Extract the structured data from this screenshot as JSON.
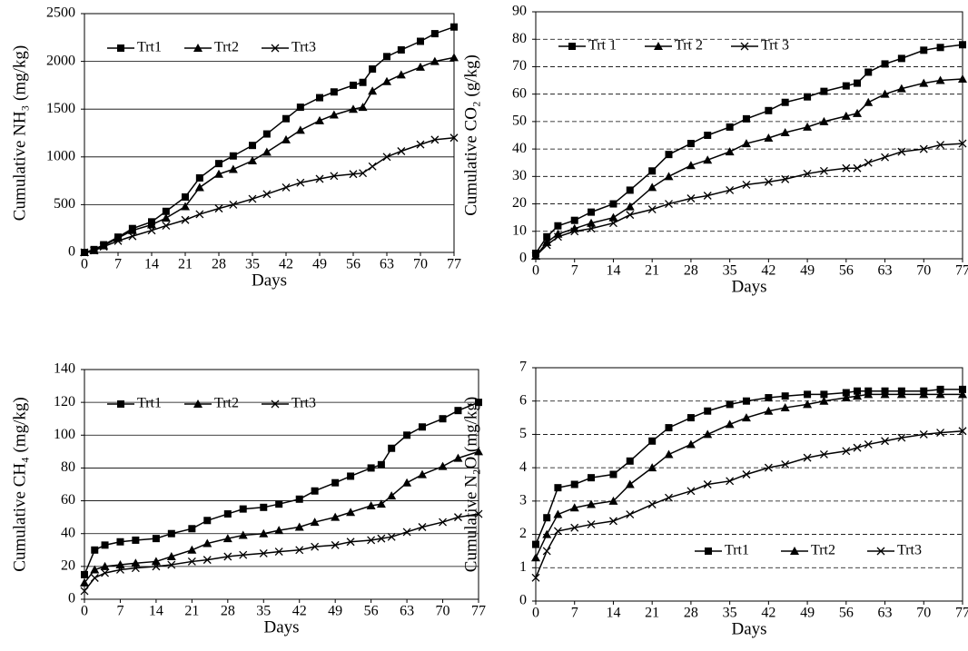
{
  "chart_data": [
    {
      "type": "line",
      "y_label": "Cumulative NH₃ (mg/kg)",
      "x_label": "Days",
      "x": [
        0,
        2,
        4,
        7,
        10,
        14,
        17,
        21,
        24,
        28,
        31,
        35,
        38,
        42,
        45,
        49,
        52,
        56,
        58,
        60,
        63,
        66,
        70,
        73,
        77
      ],
      "xlim": [
        0,
        77
      ],
      "xticks": [
        0,
        7,
        14,
        21,
        28,
        35,
        42,
        49,
        56,
        63,
        70,
        77
      ],
      "ylim": [
        0,
        2500
      ],
      "yticks": [
        0,
        500,
        1000,
        1500,
        2000,
        2500
      ],
      "grid": true,
      "grid_style": "solid",
      "legend": "upper left",
      "series": [
        {
          "name": "Trt1",
          "color": "#000000",
          "marker": "square",
          "values": [
            0,
            30,
            80,
            160,
            250,
            320,
            430,
            580,
            780,
            930,
            1010,
            1120,
            1240,
            1400,
            1520,
            1620,
            1680,
            1750,
            1780,
            1920,
            2050,
            2120,
            2210,
            2290,
            2360
          ]
        },
        {
          "name": "Trt2",
          "color": "#000000",
          "marker": "triangle",
          "values": [
            0,
            20,
            70,
            150,
            230,
            290,
            360,
            480,
            680,
            820,
            870,
            960,
            1050,
            1180,
            1280,
            1380,
            1440,
            1500,
            1520,
            1690,
            1790,
            1860,
            1940,
            2000,
            2040
          ]
        },
        {
          "name": "Trt3",
          "color": "#000000",
          "marker": "cross",
          "values": [
            0,
            20,
            60,
            120,
            170,
            230,
            280,
            340,
            400,
            460,
            500,
            560,
            610,
            680,
            730,
            770,
            800,
            820,
            830,
            900,
            1000,
            1060,
            1130,
            1180,
            1200
          ]
        }
      ]
    },
    {
      "type": "line",
      "y_label": "Cumulative CO₂ (g/kg)",
      "x_label": "Days",
      "x": [
        0,
        2,
        4,
        7,
        10,
        14,
        17,
        21,
        24,
        28,
        31,
        35,
        38,
        42,
        45,
        49,
        52,
        56,
        58,
        60,
        63,
        66,
        70,
        73,
        77
      ],
      "xlim": [
        0,
        77
      ],
      "xticks": [
        0,
        7,
        14,
        21,
        28,
        35,
        42,
        49,
        56,
        63,
        70,
        77
      ],
      "ylim": [
        0,
        90
      ],
      "yticks": [
        0,
        10,
        20,
        30,
        40,
        50,
        60,
        70,
        80,
        90
      ],
      "grid": true,
      "grid_style": "dashed",
      "legend": "upper left",
      "series": [
        {
          "name": "Trt 1",
          "color": "#000000",
          "marker": "square",
          "values": [
            2,
            8,
            12,
            14,
            17,
            20,
            25,
            32,
            38,
            42,
            45,
            48,
            51,
            54,
            57,
            59,
            61,
            63,
            64,
            68,
            71,
            73,
            76,
            77,
            78
          ]
        },
        {
          "name": "Trt 2",
          "color": "#000000",
          "marker": "triangle",
          "values": [
            1,
            6,
            9,
            11,
            13,
            15,
            19,
            26,
            30,
            34,
            36,
            39,
            42,
            44,
            46,
            48,
            50,
            52,
            53,
            57,
            60,
            62,
            64,
            65,
            65.5
          ]
        },
        {
          "name": "Trt 3",
          "color": "#000000",
          "marker": "cross",
          "values": [
            1,
            5,
            8,
            10,
            11,
            13,
            16,
            18,
            20,
            22,
            23,
            25,
            27,
            28,
            29,
            31,
            32,
            33,
            33,
            35,
            37,
            39,
            40,
            41.5,
            42
          ]
        }
      ]
    },
    {
      "type": "line",
      "y_label": "Cumulative CH₄ (mg/kg)",
      "x_label": "Days",
      "x": [
        0,
        2,
        4,
        7,
        10,
        14,
        17,
        21,
        24,
        28,
        31,
        35,
        38,
        42,
        45,
        49,
        52,
        56,
        58,
        60,
        63,
        66,
        70,
        73,
        77
      ],
      "xlim": [
        0,
        77
      ],
      "xticks": [
        0,
        7,
        14,
        21,
        28,
        35,
        42,
        49,
        56,
        63,
        70,
        77
      ],
      "ylim": [
        0,
        140
      ],
      "yticks": [
        0,
        20,
        40,
        60,
        80,
        100,
        120,
        140
      ],
      "grid": true,
      "grid_style": "solid",
      "legend": "upper left",
      "series": [
        {
          "name": "Trt1",
          "color": "#000000",
          "marker": "square",
          "values": [
            15,
            30,
            33,
            35,
            36,
            37,
            40,
            43,
            48,
            52,
            55,
            56,
            58,
            61,
            66,
            71,
            75,
            80,
            82,
            92,
            100,
            105,
            110,
            115,
            120
          ]
        },
        {
          "name": "Trt2",
          "color": "#000000",
          "marker": "triangle",
          "values": [
            10,
            18,
            20,
            21,
            22,
            23,
            26,
            30,
            34,
            37,
            39,
            40,
            42,
            44,
            47,
            50,
            53,
            57,
            58,
            63,
            71,
            76,
            81,
            86,
            90
          ]
        },
        {
          "name": "Trt3",
          "color": "#000000",
          "marker": "cross",
          "values": [
            5,
            13,
            16,
            18,
            19,
            20,
            21,
            23,
            24,
            26,
            27,
            28,
            29,
            30,
            32,
            33,
            35,
            36,
            37,
            38,
            41,
            44,
            47,
            50,
            52
          ]
        }
      ]
    },
    {
      "type": "line",
      "y_label": "Cumulative N₂O (mg/kg)",
      "x_label": "Days",
      "x": [
        0,
        2,
        4,
        7,
        10,
        14,
        17,
        21,
        24,
        28,
        31,
        35,
        38,
        42,
        45,
        49,
        52,
        56,
        58,
        60,
        63,
        66,
        70,
        73,
        77
      ],
      "xlim": [
        0,
        77
      ],
      "xticks": [
        0,
        7,
        14,
        21,
        28,
        35,
        42,
        49,
        56,
        63,
        70,
        77
      ],
      "ylim": [
        0,
        7
      ],
      "yticks": [
        0,
        1,
        2,
        3,
        4,
        5,
        6,
        7
      ],
      "grid": true,
      "grid_style": "dashed",
      "legend": "lower right",
      "series": [
        {
          "name": "Trt1",
          "color": "#000000",
          "marker": "square",
          "values": [
            1.7,
            2.5,
            3.4,
            3.5,
            3.7,
            3.8,
            4.2,
            4.8,
            5.2,
            5.5,
            5.7,
            5.9,
            6.0,
            6.1,
            6.15,
            6.2,
            6.2,
            6.25,
            6.3,
            6.3,
            6.3,
            6.3,
            6.3,
            6.35,
            6.35
          ]
        },
        {
          "name": "Trt2",
          "color": "#000000",
          "marker": "triangle",
          "values": [
            1.3,
            2.0,
            2.6,
            2.8,
            2.9,
            3.0,
            3.5,
            4.0,
            4.4,
            4.7,
            5.0,
            5.3,
            5.5,
            5.7,
            5.8,
            5.9,
            6.0,
            6.1,
            6.15,
            6.2,
            6.2,
            6.2,
            6.2,
            6.2,
            6.2
          ]
        },
        {
          "name": "Trt3",
          "color": "#000000",
          "marker": "cross",
          "values": [
            0.7,
            1.5,
            2.1,
            2.2,
            2.3,
            2.4,
            2.6,
            2.9,
            3.1,
            3.3,
            3.5,
            3.6,
            3.8,
            4.0,
            4.1,
            4.3,
            4.4,
            4.5,
            4.6,
            4.7,
            4.8,
            4.9,
            5.0,
            5.05,
            5.1
          ]
        }
      ]
    }
  ]
}
